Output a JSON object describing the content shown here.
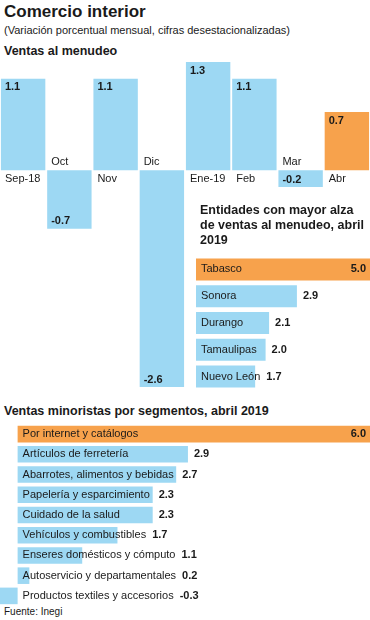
{
  "title": "Comercio interior",
  "subtitle": "(Variación porcentual mensual, cifras desestacionalizadas)",
  "source": "Fuente: Inegi",
  "chart_data": [
    {
      "type": "bar",
      "title": "Ventas al menudeo",
      "categories": [
        "Sep-18",
        "Oct",
        "Nov",
        "Dic",
        "Ene-19",
        "Feb",
        "Mar",
        "Abr"
      ],
      "values": [
        1.1,
        -0.7,
        1.1,
        -2.6,
        1.3,
        1.1,
        -0.2,
        0.7
      ],
      "colors": [
        "#9dd8f3",
        "#9dd8f3",
        "#9dd8f3",
        "#9dd8f3",
        "#9dd8f3",
        "#9dd8f3",
        "#9dd8f3",
        "#f7a24c"
      ],
      "ylim": [
        -2.6,
        1.3
      ],
      "grid": false,
      "data_labels": true,
      "tick_labels": "x"
    },
    {
      "type": "bar",
      "title": "Entidades con mayor alza de ventas al menudeo, abril 2019",
      "orientation": "horizontal",
      "categories": [
        "Tabasco",
        "Sonora",
        "Durango",
        "Tamaulipas",
        "Nuevo León"
      ],
      "values": [
        5.0,
        2.9,
        2.1,
        2.0,
        1.7
      ],
      "value_labels": [
        "5.0",
        "2.9",
        "2.1",
        "2.0",
        "1.7"
      ],
      "colors": [
        "#f7a24c",
        "#9dd8f3",
        "#9dd8f3",
        "#9dd8f3",
        "#9dd8f3"
      ],
      "xlim": [
        0,
        5.0
      ],
      "grid": false,
      "data_labels": true,
      "tick_labels": "y"
    },
    {
      "type": "bar",
      "title": "Ventas minoristas por segmentos, abril 2019",
      "orientation": "horizontal",
      "categories": [
        "Por internet y catálogos",
        "Artículos de ferretería",
        "Abarrotes, alimentos y bebidas",
        "Papelería y esparcimiento",
        "Cuidado de la salud",
        "Vehículos y combustibles",
        "Enseres domésticos y cómputo",
        "Autoservicio y departamentales",
        "Productos textiles y accesorios"
      ],
      "values": [
        6.0,
        2.9,
        2.7,
        2.3,
        2.3,
        1.7,
        1.1,
        0.2,
        -0.3
      ],
      "value_labels": [
        "6.0",
        "2.9",
        "2.7",
        "2.3",
        "2.3",
        "1.7",
        "1.1",
        "0.2",
        "-0.3"
      ],
      "colors": [
        "#f7a24c",
        "#9dd8f3",
        "#9dd8f3",
        "#9dd8f3",
        "#9dd8f3",
        "#9dd8f3",
        "#9dd8f3",
        "#9dd8f3",
        "#9dd8f3"
      ],
      "xlim": [
        -0.3,
        6.0
      ],
      "grid": false,
      "data_labels": true,
      "tick_labels": "y"
    }
  ]
}
